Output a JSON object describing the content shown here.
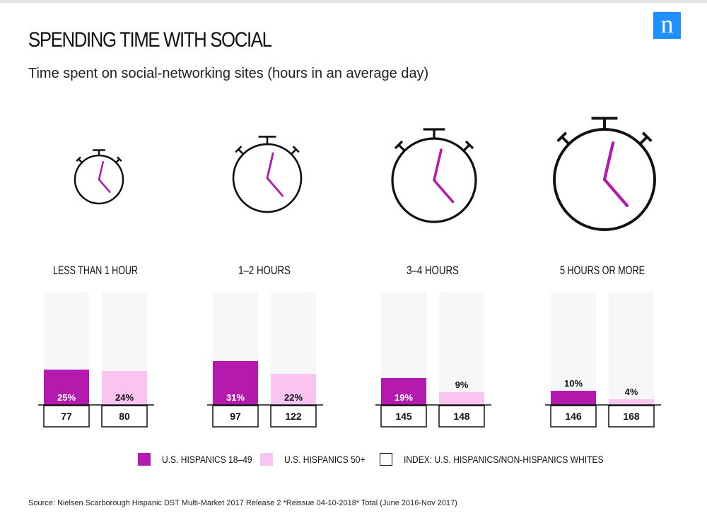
{
  "brand": {
    "logo_text": "n",
    "logo_color": "#1e90ff"
  },
  "header": {
    "title": "SPENDING TIME WITH SOCIAL",
    "subtitle": "Time spent on social-networking sites (hours in an average day)"
  },
  "chart_data": {
    "type": "bar",
    "categories": [
      "LESS THAN 1 HOUR",
      "1–2 HOURS",
      "3–4 HOURS",
      "5 HOURS OR MORE"
    ],
    "series": [
      {
        "name": "U.S. HISPANICS 18–49",
        "values": [
          25,
          31,
          19,
          10
        ],
        "labels": [
          "25%",
          "31%",
          "19%",
          "10%"
        ],
        "color": "#b31aad"
      },
      {
        "name": "U.S. HISPANICS 50+",
        "values": [
          24,
          22,
          9,
          4
        ],
        "labels": [
          "24%",
          "22%",
          "9%",
          "4%"
        ],
        "color": "#f9c4f0"
      }
    ],
    "index": {
      "name": "INDEX: U.S. HISPANICS/NON-HISPANICS WHITES",
      "values": [
        [
          77,
          80
        ],
        [
          97,
          122
        ],
        [
          145,
          148
        ],
        [
          146,
          168
        ]
      ]
    },
    "ylim": [
      0,
      100
    ],
    "unit": "%",
    "track_color": "#f6f7f9",
    "legend_position": "bottom"
  },
  "legend": {
    "items": [
      {
        "label": "U.S. HISPANICS 18–49",
        "color": "#b31aad"
      },
      {
        "label": "U.S. HISPANICS 50+",
        "color": "#f9c4f0"
      },
      {
        "label": "INDEX: U.S. HISPANICS/NON-HISPANICS WHITES",
        "color": "#ffffff"
      }
    ]
  },
  "source": "Source: Nielsen Scarborough Hispanic DST Multi-Market 2017 Release 2 *Reissue 04-10-2018* Total (June 2016-Nov 2017)"
}
